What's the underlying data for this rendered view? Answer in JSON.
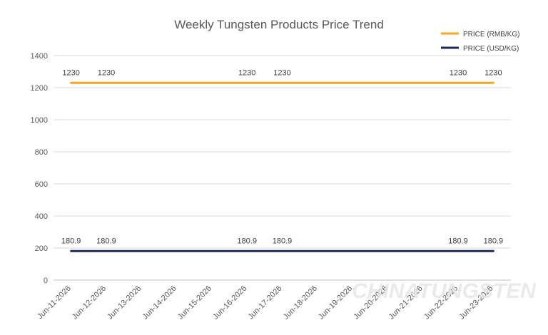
{
  "chart_data": {
    "type": "line",
    "title": "Weekly Tungsten Products Price Trend",
    "xlabel": "",
    "ylabel": "",
    "categories": [
      "Jun-11-2026",
      "Jun-12-2026",
      "Jun-13-2026",
      "Jun-14-2026",
      "Jun-15-2026",
      "Jun-16-2026",
      "Jun-17-2026",
      "Jun-18-2026",
      "Jun-19-2026",
      "Jun-20-2026",
      "Jun-21-2026",
      "Jun-22-2026",
      "Jun-23-2026"
    ],
    "ylim": [
      0,
      1400
    ],
    "yticks": [
      0,
      200,
      400,
      600,
      800,
      1000,
      1200,
      1400
    ],
    "grid": true,
    "legend_position": "top-right",
    "series": [
      {
        "name": "PRICE (RMB/KG)",
        "color": "#f5a623",
        "values": [
          1230,
          1230,
          1230,
          1230,
          1230,
          1230,
          1230,
          1230,
          1230,
          1230,
          1230,
          1230,
          1230
        ],
        "labels": [
          {
            "category": "Jun-11-2026",
            "text": "1230"
          },
          {
            "category": "Jun-12-2026",
            "text": "1230"
          },
          {
            "category": "Jun-16-2026",
            "text": "1230"
          },
          {
            "category": "Jun-17-2026",
            "text": "1230"
          },
          {
            "category": "Jun-22-2026",
            "text": "1230"
          },
          {
            "category": "Jun-23-2026",
            "text": "1230"
          }
        ]
      },
      {
        "name": "PRICE (USD/KG)",
        "color": "#1f2a5c",
        "values": [
          180.9,
          180.9,
          180.9,
          180.9,
          180.9,
          180.9,
          180.9,
          180.9,
          180.9,
          180.9,
          180.9,
          180.9,
          180.9
        ],
        "labels": [
          {
            "category": "Jun-11-2026",
            "text": "180.9"
          },
          {
            "category": "Jun-12-2026",
            "text": "180.9"
          },
          {
            "category": "Jun-16-2026",
            "text": "180.9"
          },
          {
            "category": "Jun-17-2026",
            "text": "180.9"
          },
          {
            "category": "Jun-22-2026",
            "text": "180.9"
          },
          {
            "category": "Jun-23-2026",
            "text": "180.9"
          }
        ]
      }
    ]
  },
  "watermark": "CHINATUNGSTEN"
}
